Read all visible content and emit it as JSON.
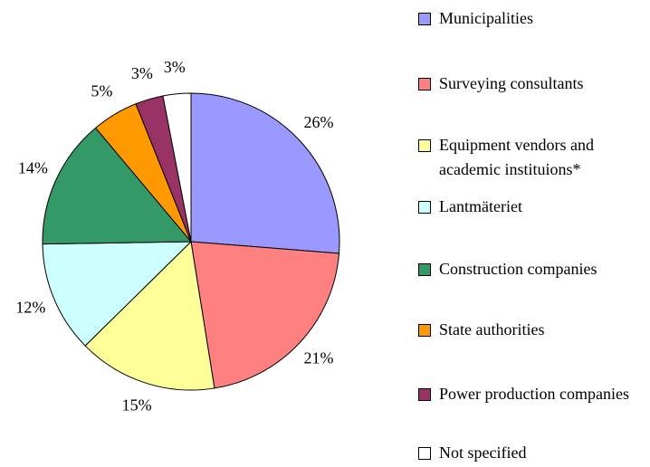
{
  "chart_data": {
    "type": "pie",
    "categories": [
      "Municipalities",
      "Surveying consultants",
      "Equipment vendors and academic instituions*",
      "Lantmäteriet",
      "Construction companies",
      "State authorities",
      "Power production companies",
      "Not specified"
    ],
    "values": [
      26,
      21,
      15,
      12,
      14,
      5,
      3,
      3
    ],
    "value_labels": [
      "26%",
      "21%",
      "15%",
      "12%",
      "14%",
      "5%",
      "3%",
      "3%"
    ],
    "colors": [
      "#9999ff",
      "#ff8080",
      "#ffff99",
      "#ccffff",
      "#339966",
      "#ff9900",
      "#993366",
      "#ffffff"
    ],
    "legend": "right"
  }
}
